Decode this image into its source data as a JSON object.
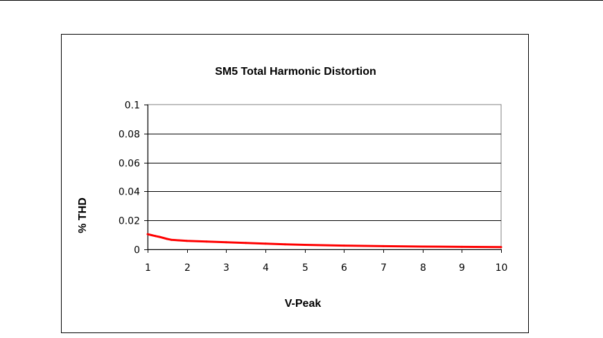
{
  "chart_data": {
    "type": "line",
    "title": "SM5 Total Harmonic Distortion",
    "xlabel": "V-Peak",
    "ylabel": "% THD",
    "xlim": [
      1,
      10
    ],
    "ylim": [
      0,
      0.1
    ],
    "x_ticks": [
      "1",
      "2",
      "3",
      "4",
      "5",
      "6",
      "7",
      "8",
      "9",
      "10"
    ],
    "y_ticks": [
      "0",
      "0.02",
      "0.04",
      "0.06",
      "0.08",
      "0.1"
    ],
    "grid": "horizontal",
    "legend": "none",
    "series": [
      {
        "color": "#ff0000",
        "x": [
          1.0,
          1.1,
          1.2,
          1.3,
          1.4,
          1.5,
          1.6,
          1.8,
          2.0,
          2.5,
          3.0,
          3.5,
          4.0,
          4.5,
          5.0,
          6.0,
          7.0,
          8.0,
          9.0,
          10.0
        ],
        "y": [
          0.0105,
          0.0098,
          0.0092,
          0.0086,
          0.0079,
          0.0072,
          0.0066,
          0.0062,
          0.0059,
          0.0054,
          0.0049,
          0.0044,
          0.0039,
          0.0035,
          0.0031,
          0.0026,
          0.0022,
          0.0019,
          0.0017,
          0.0016
        ]
      }
    ]
  }
}
